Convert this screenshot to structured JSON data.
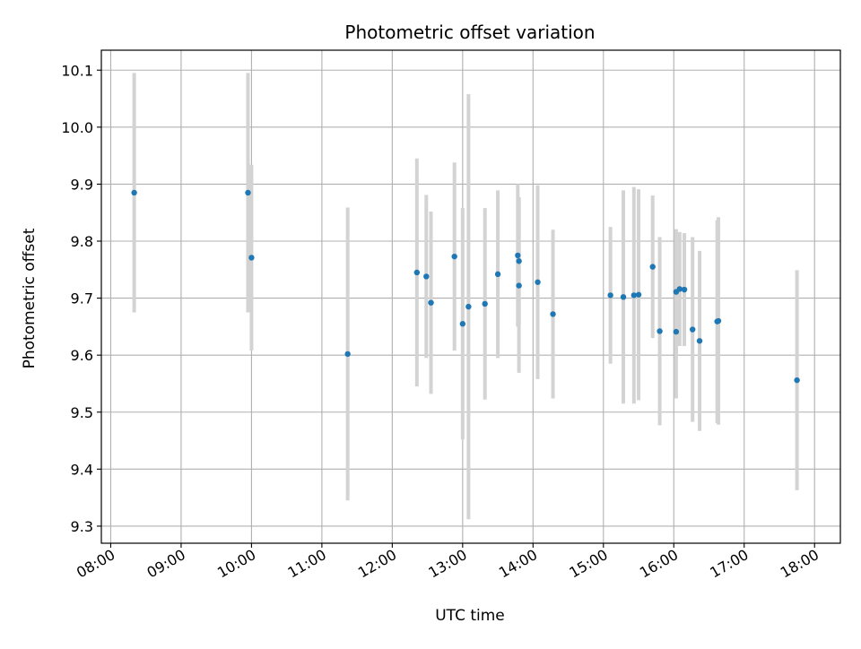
{
  "chart_data": {
    "type": "scatter",
    "title": "Photometric offset variation",
    "xlabel": "UTC time",
    "ylabel": "Photometric offset",
    "xlim": [
      "07:52",
      "18:22"
    ],
    "ylim": [
      9.27,
      10.135
    ],
    "grid": true,
    "x_ticks": [
      "08:00",
      "09:00",
      "10:00",
      "11:00",
      "12:00",
      "13:00",
      "14:00",
      "15:00",
      "16:00",
      "17:00",
      "18:00"
    ],
    "y_ticks": [
      9.3,
      9.4,
      9.5,
      9.6,
      9.7,
      9.8,
      9.9,
      10.0,
      10.1
    ],
    "y_tick_labels": [
      "9.3",
      "9.4",
      "9.5",
      "9.6",
      "9.7",
      "9.8",
      "9.9",
      "10.0",
      "10.1"
    ],
    "point_color": "#1f77b4",
    "errorbar_color": "#d3d3d3",
    "series": [
      {
        "points": [
          {
            "x": "08:20",
            "y": 9.885,
            "err": 0.21
          },
          {
            "x": "09:57",
            "y": 9.885,
            "err": 0.21
          },
          {
            "x": "10:00",
            "y": 9.771,
            "err": 0.163
          },
          {
            "x": "11:22",
            "y": 9.602,
            "err": 0.257
          },
          {
            "x": "12:21",
            "y": 9.745,
            "err": 0.2
          },
          {
            "x": "12:29",
            "y": 9.738,
            "err": 0.143
          },
          {
            "x": "12:33",
            "y": 9.692,
            "err": 0.16
          },
          {
            "x": "12:53",
            "y": 9.773,
            "err": 0.165
          },
          {
            "x": "13:00",
            "y": 9.655,
            "err": 0.203
          },
          {
            "x": "13:05",
            "y": 9.685,
            "err": 0.373
          },
          {
            "x": "13:19",
            "y": 9.69,
            "err": 0.168
          },
          {
            "x": "13:30",
            "y": 9.742,
            "err": 0.147
          },
          {
            "x": "13:47",
            "y": 9.775,
            "err": 0.125
          },
          {
            "x": "13:48",
            "y": 9.765,
            "err": 0.112
          },
          {
            "x": "13:48",
            "y": 9.722,
            "err": 0.153
          },
          {
            "x": "14:04",
            "y": 9.728,
            "err": 0.17
          },
          {
            "x": "14:17",
            "y": 9.672,
            "err": 0.148
          },
          {
            "x": "15:06",
            "y": 9.705,
            "err": 0.12
          },
          {
            "x": "15:17",
            "y": 9.702,
            "err": 0.187
          },
          {
            "x": "15:26",
            "y": 9.705,
            "err": 0.19
          },
          {
            "x": "15:30",
            "y": 9.706,
            "err": 0.185
          },
          {
            "x": "15:42",
            "y": 9.755,
            "err": 0.125
          },
          {
            "x": "15:48",
            "y": 9.642,
            "err": 0.165
          },
          {
            "x": "16:02",
            "y": 9.711,
            "err": 0.11
          },
          {
            "x": "16:02",
            "y": 9.641,
            "err": 0.117
          },
          {
            "x": "16:05",
            "y": 9.716,
            "err": 0.1
          },
          {
            "x": "16:09",
            "y": 9.715,
            "err": 0.099
          },
          {
            "x": "16:16",
            "y": 9.645,
            "err": 0.162
          },
          {
            "x": "16:22",
            "y": 9.625,
            "err": 0.158
          },
          {
            "x": "16:37",
            "y": 9.659,
            "err": 0.178
          },
          {
            "x": "16:38",
            "y": 9.66,
            "err": 0.182
          },
          {
            "x": "17:45",
            "y": 9.556,
            "err": 0.193
          }
        ]
      }
    ]
  }
}
